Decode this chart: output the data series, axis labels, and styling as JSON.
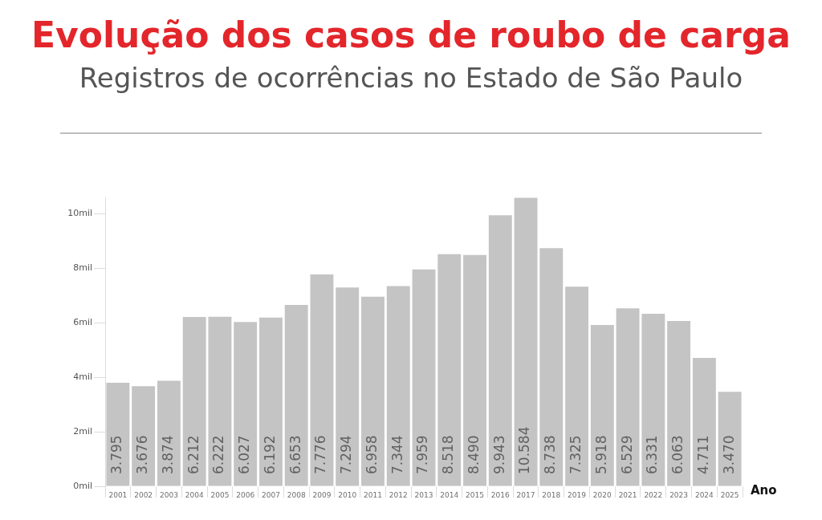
{
  "chart_data": {
    "type": "bar",
    "title": "Evolução dos casos de roubo de carga",
    "subtitle": "Registros de ocorrências no Estado de São Paulo",
    "xlabel": "Ano",
    "categories": [
      "2001",
      "2002",
      "2003",
      "2004",
      "2005",
      "2006",
      "2007",
      "2008",
      "2009",
      "2010",
      "2011",
      "2012",
      "2013",
      "2014",
      "2015",
      "2016",
      "2017",
      "2018",
      "2019",
      "2020",
      "2021",
      "2022",
      "2023",
      "2024",
      "2025"
    ],
    "values": [
      3.795,
      3.676,
      3.874,
      6.212,
      6.222,
      6.027,
      6.192,
      6.653,
      7.776,
      7.294,
      6.958,
      7.344,
      7.959,
      8.518,
      8.49,
      9.943,
      10.584,
      8.738,
      7.325,
      5.918,
      6.529,
      6.331,
      6.063,
      4.711,
      3.47
    ],
    "value_labels": [
      "3.795",
      "3.676",
      "3.874",
      "6.212",
      "6.222",
      "6.027",
      "6.192",
      "6.653",
      "7.776",
      "7.294",
      "6.958",
      "7.344",
      "7.959",
      "8.518",
      "8.490",
      "9.943",
      "10.584",
      "8.738",
      "7.325",
      "5.918",
      "6.529",
      "6.331",
      "6.063",
      "4.711",
      "3.470"
    ],
    "color": "#c4c4c4",
    "ylim": [
      0,
      10.6
    ],
    "yticks": [
      {
        "value": 0,
        "label": "0mil"
      },
      {
        "value": 2,
        "label": "2mil"
      },
      {
        "value": 4,
        "label": "4mil"
      },
      {
        "value": 6,
        "label": "6mil"
      },
      {
        "value": 8,
        "label": "8mil"
      },
      {
        "value": 10,
        "label": "10mil"
      }
    ]
  }
}
